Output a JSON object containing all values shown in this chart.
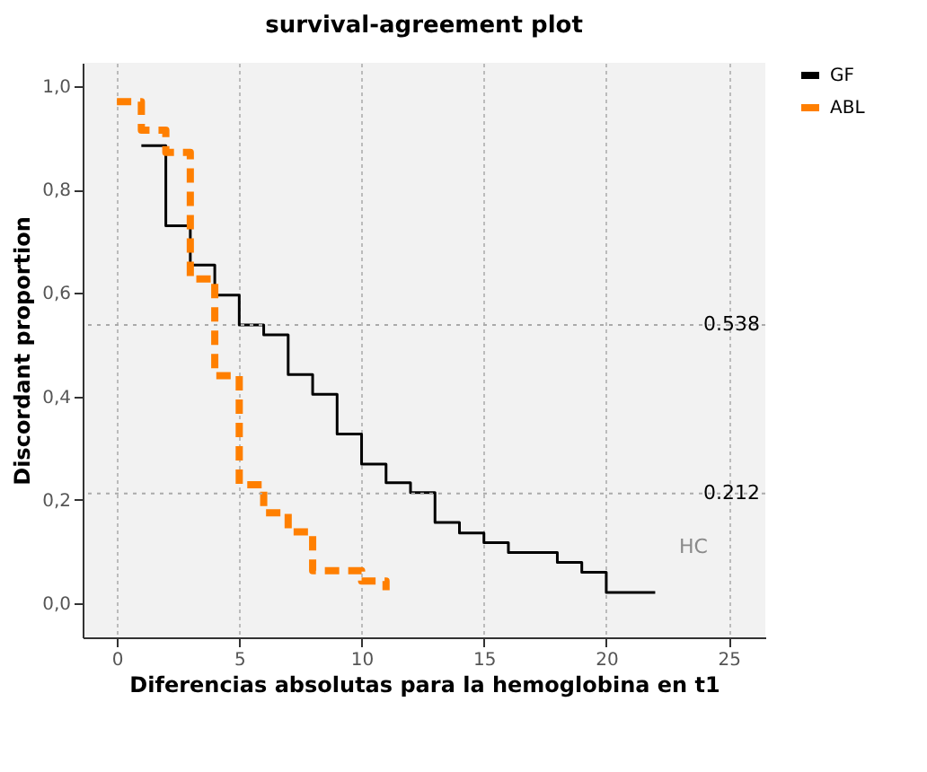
{
  "chart_data": {
    "type": "step",
    "title": "survival-agreement plot",
    "xlabel": "Diferencias absolutas para la hemoglobina en t1",
    "ylabel": "Discordant proportion",
    "xlim": [
      -1.4,
      26.5
    ],
    "xticks": [
      0,
      5,
      10,
      15,
      20,
      25
    ],
    "ylim": [
      -0.066,
      1.045
    ],
    "yticks": [
      {
        "value": 0,
        "label": "0,0"
      },
      {
        "value": 0.2,
        "label": "0,2"
      },
      {
        "value": 0.4,
        "label": "0,4"
      },
      {
        "value": 0.6,
        "label": "0,6"
      },
      {
        "value": 0.8,
        "label": "0,8"
      },
      {
        "value": 1,
        "label": "1,0"
      }
    ],
    "grid": "x",
    "legend": "right",
    "series": [
      {
        "name": "GF",
        "color": "#000000",
        "line_style": "solid",
        "x": [
          1,
          2,
          3,
          4,
          5,
          6,
          7,
          8,
          9,
          10,
          11,
          12,
          13,
          14,
          15,
          16,
          18,
          19,
          20,
          22
        ],
        "values": [
          0.885,
          0.73,
          0.654,
          0.596,
          0.538,
          0.519,
          0.442,
          0.404,
          0.327,
          0.269,
          0.233,
          0.214,
          0.156,
          0.136,
          0.117,
          0.098,
          0.079,
          0.06,
          0.021,
          0.021
        ]
      },
      {
        "name": "ABL",
        "color": "#ff7f00",
        "line_style": "dashed",
        "x": [
          0,
          1,
          2,
          3,
          4,
          5,
          6,
          7,
          8,
          10,
          11
        ],
        "values": [
          0.97,
          0.915,
          0.872,
          0.627,
          0.44,
          0.229,
          0.175,
          0.138,
          0.063,
          0.043,
          0.025
        ]
      }
    ],
    "ref_lines": [
      {
        "axis": "y",
        "value": 0.538,
        "label": "0.538",
        "color": "#aaaaaa",
        "line_style": "dotted"
      },
      {
        "axis": "y",
        "value": 0.212,
        "label": "0.212",
        "color": "#aaaaaa",
        "line_style": "dotted"
      }
    ],
    "annotations": [
      "HC"
    ]
  }
}
